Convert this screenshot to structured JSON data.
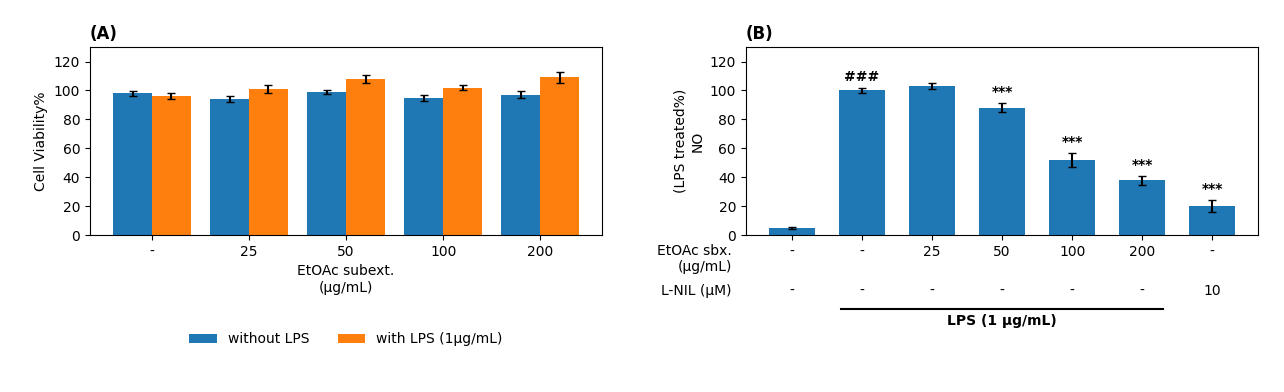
{
  "chart_data": [
    {
      "type": "bar",
      "title": "(A)",
      "ylabel": "Cell Viability%",
      "xlabel": "EtOAc subext.\n(μg/mL)",
      "categories": [
        "-",
        "25",
        "50",
        "100",
        "200"
      ],
      "series": [
        {
          "name": "without LPS",
          "values": [
            98,
            94,
            99,
            95,
            97
          ],
          "errors": [
            1.5,
            2.0,
            1.5,
            2.0,
            2.5
          ]
        },
        {
          "name": "with LPS (1μg/mL)",
          "values": [
            96,
            101,
            108,
            102,
            109
          ],
          "errors": [
            2.0,
            3.0,
            2.5,
            2.0,
            3.5
          ]
        }
      ],
      "ylim": [
        0,
        130
      ],
      "yticks": [
        0,
        20,
        40,
        60,
        80,
        100,
        120
      ],
      "legend": "upper center"
    },
    {
      "type": "bar",
      "title": "(B)",
      "ylabel": "(LPS treated%)\nNO",
      "xlabel": "EtOAc sbx.\n(μg/mL)",
      "categories": [
        "-",
        "-",
        "25",
        "50",
        "100",
        "200",
        "-"
      ],
      "values": [
        5,
        100,
        103,
        88,
        52,
        38,
        20
      ],
      "errors": [
        1.0,
        1.5,
        2.0,
        3.0,
        5.0,
        3.0,
        4.0
      ],
      "second_row": {
        "label": "L-NIL (μM)",
        "categories": [
          "-",
          "-",
          "-",
          "-",
          "-",
          "-",
          "10"
        ]
      },
      "annotations": [
        {
          "category": 1,
          "text": "###"
        },
        {
          "category": 3,
          "text": "***"
        },
        {
          "category": 4,
          "text": "***"
        },
        {
          "category": 5,
          "text": "***"
        },
        {
          "category": 6,
          "text": "***"
        }
      ],
      "bracket": {
        "label": "LPS (1 μg/mL)",
        "first": 1,
        "last": 5
      },
      "ylim": [
        0,
        130
      ],
      "yticks": [
        0,
        20,
        40,
        60,
        80,
        100,
        120
      ]
    }
  ]
}
